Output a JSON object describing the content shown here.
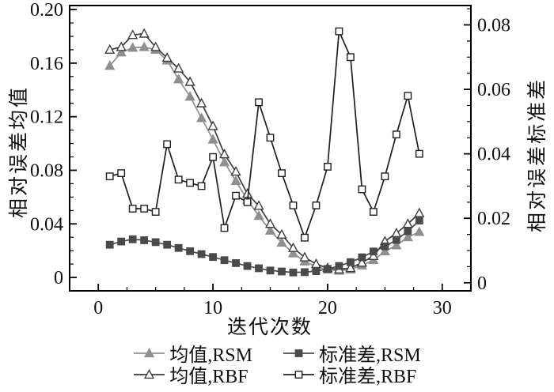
{
  "chart_data": {
    "type": "line",
    "title": "",
    "x_axis": {
      "label": "迭代次数",
      "range": [
        -2.5,
        32.5
      ],
      "major_ticks": [
        0,
        10,
        20,
        30
      ],
      "tick_labels": [
        "0",
        "10",
        "20",
        "30"
      ],
      "minor_step": 2.5
    },
    "y_left_axis": {
      "label": "相对误差均值",
      "range": [
        -0.01,
        0.203
      ],
      "major_ticks": [
        0,
        0.04,
        0.08,
        0.12,
        0.16,
        0.2
      ],
      "tick_labels": [
        "0",
        "0.04",
        "0.08",
        "0.12",
        "0.16",
        "0.20"
      ],
      "minor_step": 0.01
    },
    "y_right_axis": {
      "label": "相对误差标准差",
      "range": [
        -0.0025,
        0.086
      ],
      "major_ticks": [
        0,
        0.02,
        0.04,
        0.06,
        0.08
      ],
      "tick_labels": [
        "0",
        "0.02",
        "0.04",
        "0.06",
        "0.08"
      ],
      "minor_step": 0.005
    },
    "grid": false,
    "legend_position": "bottom",
    "x": [
      1,
      2,
      3,
      4,
      5,
      6,
      7,
      8,
      9,
      10,
      11,
      12,
      13,
      14,
      15,
      16,
      17,
      18,
      19,
      20,
      21,
      22,
      23,
      24,
      25,
      26,
      27,
      28
    ],
    "series": [
      {
        "name": "均值,RSM",
        "axis": "left",
        "marker": "triangle-filled",
        "color": "#8f8f8f",
        "values": [
          0.158,
          0.168,
          0.1715,
          0.172,
          0.17,
          0.162,
          0.148,
          0.135,
          0.119,
          0.103,
          0.086,
          0.072,
          0.058,
          0.046,
          0.035,
          0.026,
          0.018,
          0.012,
          0.008,
          0.006,
          0.005,
          0.006,
          0.009,
          0.013,
          0.0195,
          0.024,
          0.03,
          0.034
        ]
      },
      {
        "name": "均值,RBF",
        "axis": "left",
        "marker": "triangle-open",
        "color": "#3d3d3d",
        "values": [
          0.17,
          0.172,
          0.181,
          0.182,
          0.172,
          0.164,
          0.156,
          0.146,
          0.13,
          0.113,
          0.092,
          0.079,
          0.0625,
          0.0535,
          0.04,
          0.032,
          0.022,
          0.015,
          0.01,
          0.007,
          0.006,
          0.007,
          0.011,
          0.016,
          0.027,
          0.033,
          0.04,
          0.048
        ]
      },
      {
        "name": "标准差,RSM",
        "axis": "right",
        "marker": "square-filled",
        "color": "#4a4a4a",
        "values": [
          0.0118,
          0.0128,
          0.0135,
          0.0132,
          0.0126,
          0.0118,
          0.0108,
          0.0098,
          0.0089,
          0.008,
          0.007,
          0.0061,
          0.0052,
          0.0045,
          0.0038,
          0.0035,
          0.0032,
          0.0033,
          0.0036,
          0.0043,
          0.0052,
          0.0064,
          0.0079,
          0.0097,
          0.0113,
          0.0133,
          0.016,
          0.0193
        ]
      },
      {
        "name": "标准差,RBF",
        "axis": "right",
        "marker": "square-open",
        "color": "#1f1f1f",
        "values": [
          0.033,
          0.034,
          0.023,
          0.023,
          0.022,
          0.043,
          0.032,
          0.031,
          0.03,
          0.039,
          0.017,
          0.027,
          0.025,
          0.056,
          0.045,
          0.034,
          0.024,
          0.014,
          0.024,
          0.036,
          0.078,
          0.07,
          0.029,
          0.022,
          0.033,
          0.046,
          0.058,
          0.04
        ]
      }
    ]
  },
  "legend": {
    "display_order": [
      0,
      2,
      1,
      3
    ]
  }
}
